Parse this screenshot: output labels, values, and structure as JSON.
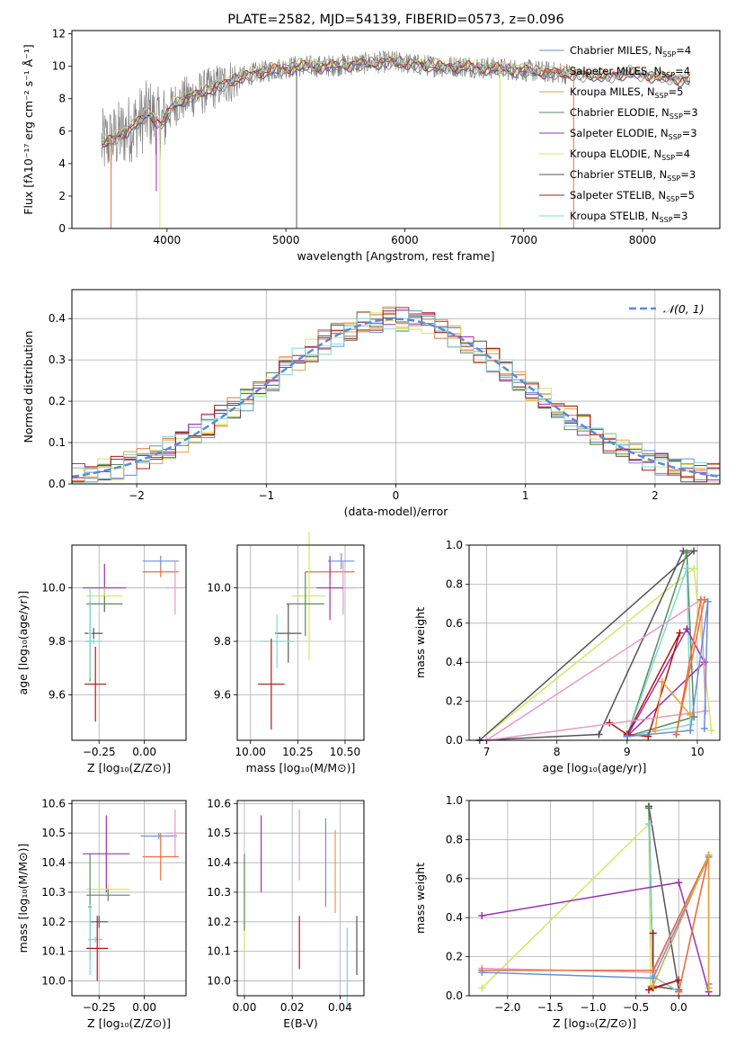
{
  "chart_data": [
    {
      "type": "line",
      "title": "PLATE=2582, MJD=54139, FIBERID=0573, z=0.096",
      "xlabel": "wavelength [Angstrom, rest frame]",
      "ylabel": "Flux [fλ10⁻¹⁷ erg cm⁻² s⁻¹ Å⁻¹]",
      "xlim": [
        3200,
        8650
      ],
      "ylim": [
        0,
        12.2
      ],
      "xticks": [
        "4000",
        "5000",
        "6000",
        "7000",
        "8000"
      ],
      "xtick_values": [
        4000,
        5000,
        6000,
        7000,
        8000
      ],
      "yticks": [
        "0",
        "2",
        "4",
        "6",
        "8",
        "10",
        "12"
      ],
      "ytick_values": [
        0,
        2,
        4,
        6,
        8,
        10,
        12
      ],
      "grid": false,
      "legend_position": "right",
      "legend": [
        {
          "pre": "Chabrier MILES, N",
          "sub": "SSP",
          "post": "=4",
          "color": "#6a8fd8"
        },
        {
          "pre": "Salpeter MILES, N",
          "sub": "SSP",
          "post": "=4",
          "color": "#e8703a"
        },
        {
          "pre": "Kroupa MILES, N",
          "sub": "SSP",
          "post": "=5",
          "color": "#e8a03a"
        },
        {
          "pre": "Chabrier ELODIE, N",
          "sub": "SSP",
          "post": "=3",
          "color": "#5a8a5a"
        },
        {
          "pre": "Salpeter ELODIE, N",
          "sub": "SSP",
          "post": "=3",
          "color": "#9a30b0"
        },
        {
          "pre": "Kroupa ELODIE, N",
          "sub": "SSP",
          "post": "=4",
          "color": "#d4e860"
        },
        {
          "pre": "Chabrier STELIB, N",
          "sub": "SSP",
          "post": "=3",
          "color": "#555555"
        },
        {
          "pre": "Salpeter STELIB, N",
          "sub": "SSP",
          "post": "=5",
          "color": "#b01818"
        },
        {
          "pre": "Kroupa STELIB, N",
          "sub": "SSP",
          "post": "=3",
          "color": "#80d8d8"
        }
      ],
      "data_color": "#808080",
      "continuum": {
        "x": [
          3450,
          3550,
          3650,
          3750,
          3850,
          3950,
          4050,
          4150,
          4300,
          4500,
          4700,
          4900,
          5100,
          5300,
          5500,
          5700,
          5900,
          6100,
          6300,
          6500,
          6700,
          6900,
          7100,
          7300,
          7500,
          7700,
          7900,
          8100,
          8300,
          8400
        ],
        "y": [
          5.2,
          5.5,
          6.0,
          6.5,
          7.1,
          6.4,
          7.6,
          8.0,
          8.4,
          9.0,
          9.5,
          9.8,
          10.0,
          10.0,
          10.1,
          10.2,
          10.3,
          10.1,
          10.0,
          10.0,
          9.9,
          9.8,
          9.7,
          9.6,
          9.5,
          9.4,
          9.6,
          9.4,
          9.2,
          9.2
        ]
      }
    },
    {
      "type": "step",
      "xlabel": "(data-model)/error",
      "ylabel": "Normed distribution",
      "xlim": [
        -2.5,
        2.5
      ],
      "ylim": [
        0,
        0.47
      ],
      "xticks": [
        "−2",
        "−1",
        "0",
        "1",
        "2"
      ],
      "xtick_values": [
        -2,
        -1,
        0,
        1,
        2
      ],
      "yticks": [
        "0.0",
        "0.1",
        "0.2",
        "0.3",
        "0.4"
      ],
      "ytick_values": [
        0,
        0.1,
        0.2,
        0.3,
        0.4
      ],
      "grid": true,
      "legend_position": "top-right",
      "legend": [
        {
          "label": "𝒩(0, 1)",
          "color": "#5b8ad8",
          "style": "dashed"
        }
      ]
    },
    {
      "type": "errorbar",
      "xlabel": "Z [log₁₀(Z/Z⊙)]",
      "ylabel": "age  [log₁₀(age/yr)]",
      "xlim": [
        -0.4,
        0.23
      ],
      "ylim": [
        9.43,
        10.16
      ],
      "xticks": [
        "−0.25",
        "0.00"
      ],
      "xtick_values": [
        -0.25,
        0.0
      ],
      "yticks": [
        "9.6",
        "9.8",
        "10.0"
      ],
      "ytick_values": [
        9.6,
        9.8,
        10.0
      ],
      "grid": true,
      "points": [
        {
          "x": 0.09,
          "y": 10.1,
          "xerr": 0.1,
          "yerr": 0.02,
          "color": "#6a8fd8"
        },
        {
          "x": 0.09,
          "y": 10.06,
          "xerr": 0.1,
          "yerr": 0.02,
          "color": "#e8703a"
        },
        {
          "x": 0.17,
          "y": 10.0,
          "xerr": 0.05,
          "yerr": 0.1,
          "color": "#e898c8"
        },
        {
          "x": -0.22,
          "y": 10.0,
          "xerr": 0.12,
          "yerr": 0.09,
          "color": "#9a30b0"
        },
        {
          "x": -0.22,
          "y": 9.97,
          "xerr": 0.1,
          "yerr": 0.03,
          "color": "#d4e860"
        },
        {
          "x": -0.22,
          "y": 9.94,
          "xerr": 0.1,
          "yerr": 0.03,
          "color": "#5a8a5a"
        },
        {
          "x": -0.3,
          "y": 9.8,
          "xerr": 0.02,
          "yerr": 0.15,
          "color": "#5a8a5a"
        },
        {
          "x": -0.28,
          "y": 9.83,
          "xerr": 0.05,
          "yerr": 0.02,
          "color": "#555555"
        },
        {
          "x": -0.28,
          "y": 9.8,
          "xerr": 0.05,
          "yerr": 0.01,
          "color": "#80d8d8"
        },
        {
          "x": -0.3,
          "y": 9.83,
          "xerr": 0.01,
          "yerr": 0.17,
          "color": "#80d8d8"
        },
        {
          "x": -0.27,
          "y": 9.64,
          "xerr": 0.06,
          "yerr": 0.14,
          "color": "#b01818"
        }
      ]
    },
    {
      "type": "errorbar",
      "xlabel": "mass [log₁₀(M/M⊙)]",
      "ylabel": "",
      "xlim": [
        9.93,
        10.6
      ],
      "ylim": [
        9.43,
        10.16
      ],
      "xticks": [
        "10.00",
        "10.25",
        "10.50"
      ],
      "xtick_values": [
        10.0,
        10.25,
        10.5
      ],
      "yticks": [
        "9.6",
        "9.8",
        "10.0"
      ],
      "ytick_values": [
        9.6,
        9.8,
        10.0
      ],
      "grid": true,
      "points": [
        {
          "x": 10.48,
          "y": 10.1,
          "xerr": 0.07,
          "yerr": 0.03,
          "color": "#6a8fd8"
        },
        {
          "x": 10.42,
          "y": 10.06,
          "xerr": 0.13,
          "yerr": 0.02,
          "color": "#e8703a"
        },
        {
          "x": 10.49,
          "y": 10.0,
          "xerr": 0.07,
          "yerr": 0.1,
          "color": "#e898c8"
        },
        {
          "x": 10.42,
          "y": 10.0,
          "xerr": 0.07,
          "yerr": 0.12,
          "color": "#9a30b0"
        },
        {
          "x": 10.31,
          "y": 9.97,
          "xerr": 0.09,
          "yerr": 0.24,
          "color": "#d4e860"
        },
        {
          "x": 10.29,
          "y": 9.94,
          "xerr": 0.1,
          "yerr": 0.12,
          "color": "#5a8a5a"
        },
        {
          "x": 10.2,
          "y": 9.83,
          "xerr": 0.07,
          "yerr": 0.11,
          "color": "#555555"
        },
        {
          "x": 10.14,
          "y": 9.8,
          "xerr": 0.09,
          "yerr": 0.1,
          "color": "#80d8d8"
        },
        {
          "x": 10.11,
          "y": 9.64,
          "xerr": 0.07,
          "yerr": 0.17,
          "color": "#b01818"
        }
      ]
    },
    {
      "type": "line",
      "xlabel": "age  [log₁₀(age/yr)]",
      "ylabel": "mass weight",
      "xlim": [
        6.75,
        10.32
      ],
      "ylim": [
        0,
        1.0
      ],
      "xticks": [
        "7",
        "8",
        "9",
        "10"
      ],
      "xtick_values": [
        7,
        8,
        9,
        10
      ],
      "yticks": [
        "0.0",
        "0.2",
        "0.4",
        "0.6",
        "0.8",
        "1.0"
      ],
      "ytick_values": [
        0,
        0.2,
        0.4,
        0.6,
        0.8,
        1.0
      ],
      "grid": true,
      "series": [
        {
          "color": "#d4e860",
          "x": [
            6.9,
            9.95,
            10.2
          ],
          "y": [
            0.0,
            0.88,
            0.05
          ]
        },
        {
          "color": "#555555",
          "x": [
            6.9,
            8.6,
            9.8,
            9.95,
            6.9
          ],
          "y": [
            0.0,
            0.03,
            0.97,
            0.97,
            0.0
          ]
        },
        {
          "color": "#5a8a5a",
          "x": [
            9.0,
            9.85,
            9.95,
            9.0
          ],
          "y": [
            0.02,
            0.96,
            0.12,
            0.02
          ]
        },
        {
          "color": "#80d8d8",
          "x": [
            9.0,
            9.85,
            9.9,
            9.0
          ],
          "y": [
            0.02,
            0.88,
            0.08,
            0.02
          ]
        },
        {
          "color": "#9a30b0",
          "x": [
            9.0,
            9.85,
            10.1,
            9.0
          ],
          "y": [
            0.02,
            0.57,
            0.4,
            0.02
          ]
        },
        {
          "color": "#b01818",
          "x": [
            8.75,
            9.0,
            9.3,
            9.75,
            9.0
          ],
          "y": [
            0.09,
            0.03,
            0.02,
            0.55,
            0.03
          ]
        },
        {
          "color": "#e898c8",
          "x": [
            7.0,
            10.05,
            10.12,
            7.0
          ],
          "y": [
            0.0,
            0.72,
            0.15,
            0.0
          ]
        },
        {
          "color": "#e8703a",
          "x": [
            9.7,
            10.05,
            10.1,
            9.7
          ],
          "y": [
            0.03,
            0.72,
            0.72,
            0.03
          ]
        },
        {
          "color": "#6a8fd8",
          "x": [
            9.0,
            9.9,
            10.15,
            10.1
          ],
          "y": [
            0.02,
            0.05,
            0.71,
            0.06
          ]
        },
        {
          "color": "#e8a03a",
          "x": [
            9.4,
            9.5,
            9.9
          ],
          "y": [
            0.05,
            0.3,
            0.13
          ]
        }
      ]
    },
    {
      "type": "errorbar",
      "xlabel": "Z [log₁₀(Z/Z⊙)]",
      "ylabel": "mass [log₁₀(M/M⊙)]",
      "xlim": [
        -0.4,
        0.23
      ],
      "ylim": [
        9.95,
        10.61
      ],
      "xticks": [
        "−0.25",
        "0.00"
      ],
      "xtick_values": [
        -0.25,
        0.0
      ],
      "yticks": [
        "10.0",
        "10.1",
        "10.2",
        "10.3",
        "10.4",
        "10.5",
        "10.6"
      ],
      "ytick_values": [
        10.0,
        10.1,
        10.2,
        10.3,
        10.4,
        10.5,
        10.6
      ],
      "grid": true,
      "points": [
        {
          "x": 0.08,
          "y": 10.49,
          "xerr": 0.1,
          "yerr": 0.01,
          "color": "#6a8fd8"
        },
        {
          "x": 0.17,
          "y": 10.5,
          "xerr": 0.05,
          "yerr": 0.08,
          "color": "#e898c8"
        },
        {
          "x": 0.09,
          "y": 10.42,
          "xerr": 0.1,
          "yerr": 0.08,
          "color": "#e8703a"
        },
        {
          "x": -0.21,
          "y": 10.43,
          "xerr": 0.13,
          "yerr": 0.13,
          "color": "#9a30b0"
        },
        {
          "x": -0.2,
          "y": 10.31,
          "xerr": 0.12,
          "yerr": 0.02,
          "color": "#d4e860"
        },
        {
          "x": -0.2,
          "y": 10.29,
          "xerr": 0.12,
          "yerr": 0.02,
          "color": "#5a8a5a"
        },
        {
          "x": -0.3,
          "y": 10.25,
          "xerr": 0.01,
          "yerr": 0.18,
          "color": "#5a8a5a"
        },
        {
          "x": -0.25,
          "y": 10.2,
          "xerr": 0.05,
          "yerr": 0.02,
          "color": "#555555"
        },
        {
          "x": -0.27,
          "y": 10.14,
          "xerr": 0.04,
          "yerr": 0.01,
          "color": "#80d8d8"
        },
        {
          "x": -0.3,
          "y": 10.14,
          "xerr": 0.01,
          "yerr": 0.12,
          "color": "#80d8d8"
        },
        {
          "x": -0.26,
          "y": 10.11,
          "xerr": 0.06,
          "yerr": 0.11,
          "color": "#b01818"
        }
      ]
    },
    {
      "type": "errorbar",
      "xlabel": "E(B-V)",
      "ylabel": "",
      "xlim": [
        -0.003,
        0.05
      ],
      "ylim": [
        9.95,
        10.61
      ],
      "xticks": [
        "0.00",
        "0.02",
        "0.04"
      ],
      "xtick_values": [
        0.0,
        0.02,
        0.04
      ],
      "yticks": [
        "10.0",
        "10.1",
        "10.2",
        "10.3",
        "10.4",
        "10.5",
        "10.6"
      ],
      "ytick_values": [
        10.0,
        10.1,
        10.2,
        10.3,
        10.4,
        10.5,
        10.6
      ],
      "grid": true,
      "points": [
        {
          "x": 0.0,
          "y": 10.25,
          "xerr": 0,
          "yerr": 0.15,
          "color": "#d4e860"
        },
        {
          "x": 0.0,
          "y": 10.3,
          "xerr": 0,
          "yerr": 0.13,
          "color": "#5a8a5a"
        },
        {
          "x": 0.007,
          "y": 10.43,
          "xerr": 0,
          "yerr": 0.13,
          "color": "#9a30b0"
        },
        {
          "x": 0.023,
          "y": 10.46,
          "xerr": 0,
          "yerr": 0.12,
          "color": "#e898c8"
        },
        {
          "x": 0.023,
          "y": 10.13,
          "xerr": 0,
          "yerr": 0.09,
          "color": "#b01818"
        },
        {
          "x": 0.034,
          "y": 10.4,
          "xerr": 0,
          "yerr": 0.15,
          "color": "#6a8fd8"
        },
        {
          "x": 0.038,
          "y": 10.37,
          "xerr": 0,
          "yerr": 0.14,
          "color": "#e8a03a"
        },
        {
          "x": 0.043,
          "y": 10.04,
          "xerr": 0,
          "yerr": 0.14,
          "color": "#80d8d8"
        },
        {
          "x": 0.047,
          "y": 10.12,
          "xerr": 0,
          "yerr": 0.1,
          "color": "#555555"
        }
      ]
    },
    {
      "type": "line",
      "xlabel": "Z [log₁₀(Z/Z⊙)]",
      "ylabel": "mass weight",
      "xlim": [
        -2.45,
        0.48
      ],
      "ylim": [
        0,
        1.0
      ],
      "xticks": [
        "−2.0",
        "−1.5",
        "−1.0",
        "−0.5",
        "0.0"
      ],
      "xtick_values": [
        -2.0,
        -1.5,
        -1.0,
        -0.5,
        0.0
      ],
      "yticks": [
        "0.0",
        "0.2",
        "0.4",
        "0.6",
        "0.8",
        "1.0"
      ],
      "ytick_values": [
        0,
        0.2,
        0.4,
        0.6,
        0.8,
        1.0
      ],
      "grid": true,
      "series": [
        {
          "color": "#d4e860",
          "x": [
            -2.3,
            -0.35,
            -0.33
          ],
          "y": [
            0.04,
            0.88,
            0.05
          ]
        },
        {
          "color": "#555555",
          "x": [
            -0.35,
            -0.3,
            0.0,
            -0.35
          ],
          "y": [
            0.97,
            0.05,
            0.03,
            0.97
          ]
        },
        {
          "color": "#5a8a5a",
          "x": [
            -0.35,
            -0.3,
            0.0
          ],
          "y": [
            0.96,
            0.1,
            0.02
          ]
        },
        {
          "color": "#80d8d8",
          "x": [
            -0.35,
            -0.3,
            0.0
          ],
          "y": [
            0.88,
            0.1,
            0.02
          ]
        },
        {
          "color": "#9a30b0",
          "x": [
            -2.3,
            0.0,
            0.35
          ],
          "y": [
            0.41,
            0.58,
            0.02
          ]
        },
        {
          "color": "#b01818",
          "x": [
            -0.3,
            -0.3,
            0.0,
            -0.35
          ],
          "y": [
            0.32,
            0.04,
            0.08,
            0.03
          ]
        },
        {
          "color": "#e898c8",
          "x": [
            -2.3,
            -0.3,
            0.35,
            0.0
          ],
          "y": [
            0.14,
            0.12,
            0.72,
            0.02
          ]
        },
        {
          "color": "#e8703a",
          "x": [
            -2.3,
            -0.3,
            0.35,
            0.0
          ],
          "y": [
            0.13,
            0.13,
            0.72,
            0.02
          ]
        },
        {
          "color": "#6a8fd8",
          "x": [
            -2.3,
            -0.3,
            0.35,
            0.35
          ],
          "y": [
            0.12,
            0.09,
            0.71,
            0.06
          ]
        },
        {
          "color": "#e8a03a",
          "x": [
            -0.3,
            0.35,
            0.35
          ],
          "y": [
            0.05,
            0.72,
            0.04
          ]
        }
      ]
    }
  ]
}
